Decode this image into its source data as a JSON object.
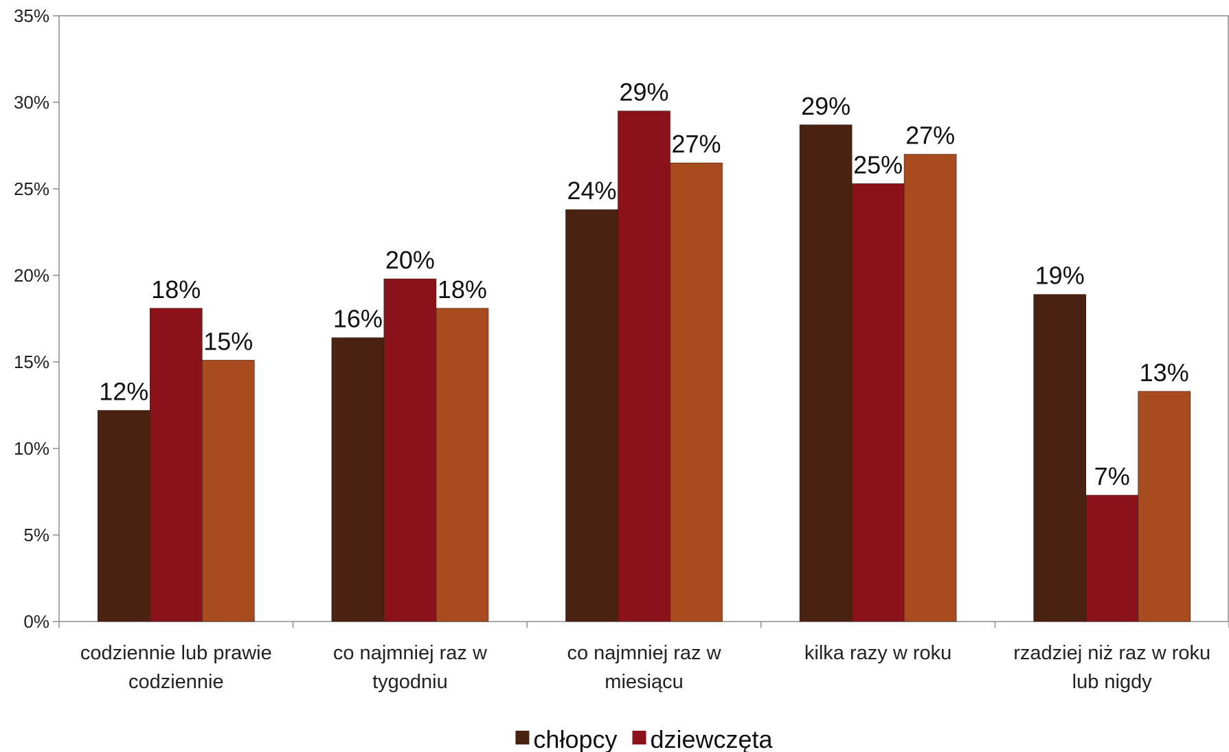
{
  "chart_data": {
    "type": "bar",
    "categories": [
      [
        "codziennie lub prawie",
        "codziennie"
      ],
      [
        "co najmniej raz w",
        "tygodniu"
      ],
      [
        "co najmniej raz w",
        "miesiącu"
      ],
      [
        "kilka razy w roku"
      ],
      [
        "rzadziej niż raz w roku",
        "lub nigdy"
      ]
    ],
    "series": [
      {
        "name": "chłopcy",
        "color": "#4a2211",
        "values": [
          12.2,
          16.4,
          23.8,
          28.7,
          18.9
        ],
        "labels": [
          "12%",
          "16%",
          "24%",
          "29%",
          "19%"
        ]
      },
      {
        "name": "dziewczęta",
        "color": "#8b121b",
        "values": [
          18.1,
          19.8,
          29.5,
          25.3,
          7.3
        ],
        "labels": [
          "18%",
          "20%",
          "29%",
          "25%",
          "7%"
        ]
      },
      {
        "name": "",
        "color": "#a84b1f",
        "values": [
          15.1,
          18.1,
          26.5,
          27.0,
          13.3
        ],
        "labels": [
          "15%",
          "18%",
          "27%",
          "27%",
          "13%"
        ]
      }
    ],
    "ylim": [
      0,
      35
    ],
    "yticks": [
      "0%",
      "5%",
      "10%",
      "15%",
      "20%",
      "25%",
      "30%",
      "35%"
    ],
    "ytick_values": [
      0,
      5,
      10,
      15,
      20,
      25,
      30,
      35
    ],
    "legend": {
      "placement": "bottom-center",
      "entries": [
        {
          "label": "chłopcy",
          "color": "#4a2211"
        },
        {
          "label": "dziewczęta",
          "color": "#8b121b"
        }
      ]
    },
    "grid": false,
    "title": "",
    "xlabel": "",
    "ylabel": ""
  }
}
